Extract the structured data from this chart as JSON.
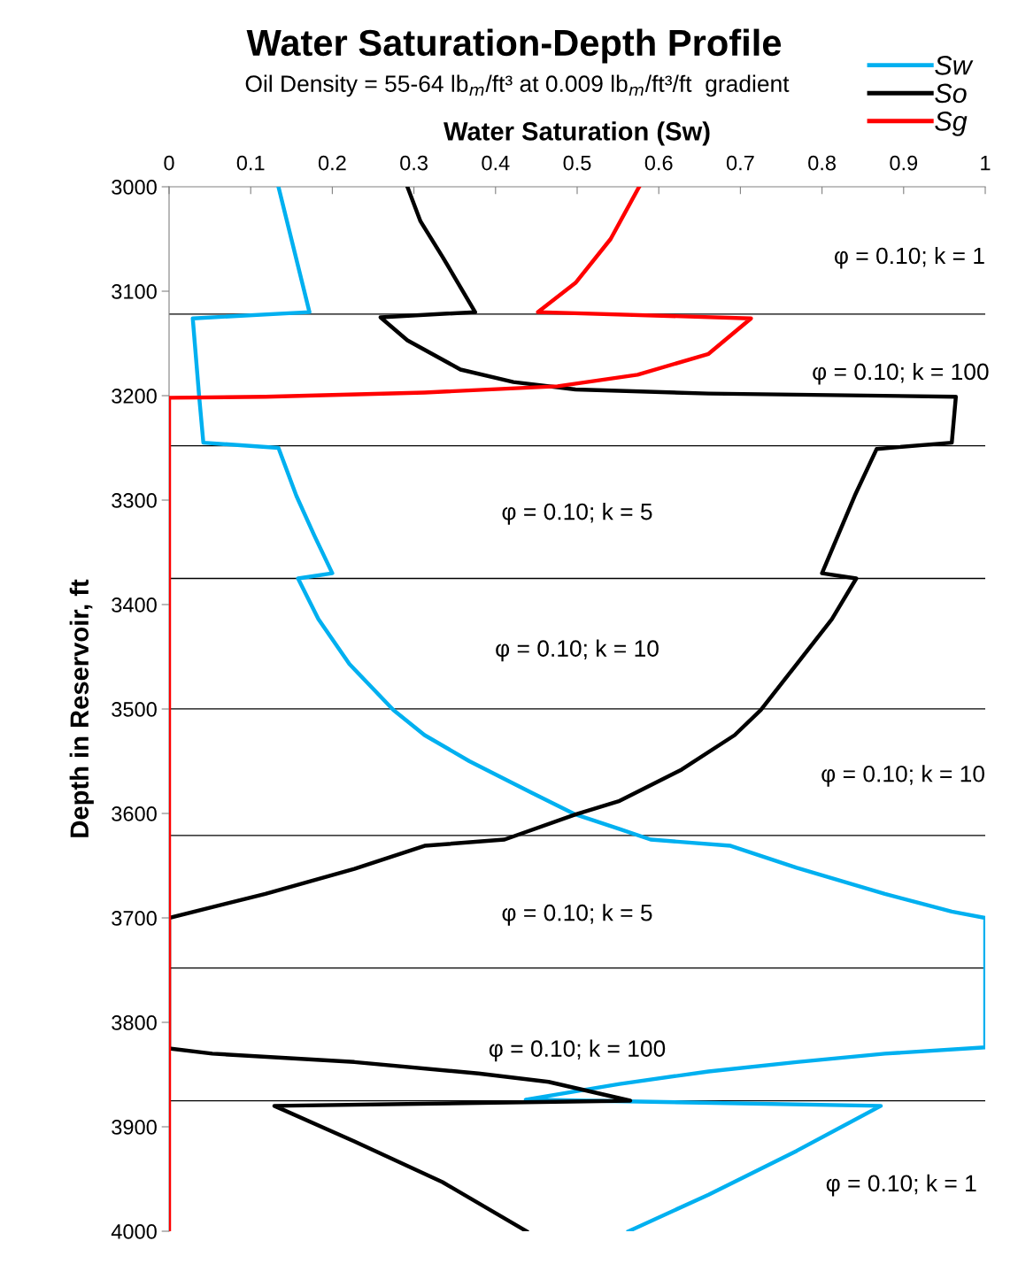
{
  "chart_data": {
    "type": "line",
    "title": "Water Saturation-Depth Profile",
    "subtitle": "Oil Density = 55-64 lb$_{m}$/ft³ at 0.009 lb$_{m}$/ft³/ft  gradient",
    "xlabel": "Water Saturation (Sw)",
    "ylabel": "Depth in Reservoir, ft",
    "xlim": [
      0,
      1
    ],
    "xticks": [
      0,
      0.1,
      0.2,
      0.3,
      0.4,
      0.5,
      0.6,
      0.7,
      0.8,
      0.9,
      1
    ],
    "ylim": [
      4000,
      3000
    ],
    "yticks": [
      3000,
      3100,
      3200,
      3300,
      3400,
      3500,
      3600,
      3700,
      3800,
      3900,
      4000
    ],
    "grid": false,
    "legend": "top right",
    "marker": "none",
    "line_style": "solid",
    "series": [
      {
        "name": "Sw",
        "color": "#00b0f0",
        "x": [
          0.134,
          0.172,
          0.029,
          0.037,
          0.042,
          0.134,
          0.156,
          0.178,
          0.2,
          0.158,
          0.183,
          0.221,
          0.275,
          0.313,
          0.368,
          0.444,
          0.498,
          0.552,
          0.59,
          0.688,
          0.769,
          0.877,
          0.959,
          1,
          1,
          0.877,
          0.769,
          0.661,
          0.552,
          0.437,
          0.872,
          0.769,
          0.661,
          0.563
        ],
        "values": [
          3000,
          3120,
          3126,
          3202,
          3245,
          3250,
          3296,
          3334,
          3370,
          3375,
          3414,
          3457,
          3501,
          3525,
          3550,
          3580,
          3601,
          3615,
          3625,
          3631,
          3652,
          3677,
          3694,
          3700,
          3824,
          3830,
          3838,
          3847,
          3859,
          3874,
          3880,
          3923,
          3965,
          4000
        ]
      },
      {
        "name": "So",
        "color": "#000000",
        "x": [
          0.292,
          0.308,
          0.335,
          0.375,
          0.259,
          0.292,
          0.357,
          0.422,
          0.498,
          0.661,
          0.964,
          0.959,
          0.867,
          0.84,
          0.8,
          0.842,
          0.812,
          0.769,
          0.725,
          0.693,
          0.628,
          0.552,
          0.498,
          0.411,
          0.313,
          0.227,
          0.118,
          0,
          0,
          0.053,
          0.227,
          0.379,
          0.465,
          0.565,
          0.129,
          0.227,
          0.335,
          0.438
        ],
        "values": [
          3000,
          3033,
          3067,
          3120,
          3125,
          3147,
          3175,
          3187,
          3194,
          3198,
          3201,
          3245,
          3251,
          3296,
          3370,
          3375,
          3414,
          3457,
          3501,
          3525,
          3558,
          3588,
          3601,
          3625,
          3631,
          3653,
          3677,
          3700,
          3825,
          3830,
          3838,
          3849,
          3857,
          3875,
          3880,
          3914,
          3953,
          4000
        ]
      },
      {
        "name": "Sg",
        "color": "#ff0000",
        "x": [
          0.576,
          0.541,
          0.498,
          0.452,
          0.713,
          0.661,
          0.574,
          0.476,
          0.313,
          0.118,
          0,
          0
        ],
        "values": [
          3000,
          3050,
          3092,
          3120,
          3126,
          3160,
          3180,
          3191,
          3197,
          3201,
          3202,
          4000
        ]
      }
    ],
    "ref_lines": [
      {
        "axis": "y",
        "value": 3122,
        "color": "#000000"
      },
      {
        "axis": "y",
        "value": 3248,
        "color": "#000000"
      },
      {
        "axis": "y",
        "value": 3375,
        "color": "#000000"
      },
      {
        "axis": "y",
        "value": 3500,
        "color": "#000000"
      },
      {
        "axis": "y",
        "value": 3621,
        "color": "#000000"
      },
      {
        "axis": "y",
        "value": 3748,
        "color": "#000000"
      },
      {
        "axis": "y",
        "value": 3875,
        "color": "#000000"
      }
    ],
    "annotations": [
      "φ = 0.10; k = 1",
      "φ = 0.10; k = 100",
      "φ = 0.10; k = 5",
      "φ = 0.10; k = 10",
      "φ = 0.10; k = 10",
      "φ = 0.10; k = 5",
      "φ = 0.10; k = 100",
      "φ = 0.10; k = 1"
    ]
  }
}
